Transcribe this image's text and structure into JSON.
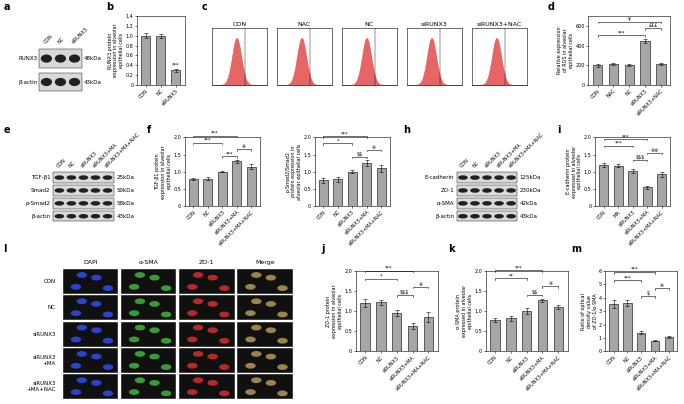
{
  "chart_data": [
    {
      "panel": "b",
      "type": "bar",
      "categories": [
        "CON",
        "NC",
        "siRUNX3"
      ],
      "values": [
        1.0,
        1.0,
        0.3
      ],
      "errors": [
        0.05,
        0.04,
        0.03
      ],
      "ylabel": "RUNX3 protein\nexpression in alveolar\nepithelial cells",
      "ylim": [
        0,
        1.4
      ],
      "yticks": [
        0,
        0.2,
        0.4,
        0.6,
        0.8,
        1.0,
        1.2,
        1.4
      ],
      "color": "#a6a6a6",
      "annotations": [
        {
          "text": "***",
          "bar": "siRUNX3"
        }
      ]
    },
    {
      "panel": "d",
      "type": "bar",
      "categories": [
        "CON",
        "NAC",
        "NC",
        "siRUNX3",
        "siRUNX3+NAC"
      ],
      "values": [
        200,
        210,
        200,
        450,
        210
      ],
      "errors": [
        15,
        12,
        10,
        20,
        12
      ],
      "ylabel": "Relative expression\nof ROS in alveolar\nepithelial cells",
      "ylim": [
        0,
        700
      ],
      "yticks": [
        0,
        200,
        400,
        600
      ],
      "color": "#a6a6a6",
      "annotations": [
        {
          "text": "***",
          "between": [
            "CON",
            "siRUNX3"
          ]
        },
        {
          "text": "£££",
          "between": [
            "siRUNX3",
            "siRUNX3+NAC"
          ]
        },
        {
          "text": "¥",
          "between": [
            "CON",
            "siRUNX3+NAC"
          ]
        }
      ]
    },
    {
      "panel": "f",
      "type": "bar",
      "categories": [
        "CON",
        "NC",
        "siRUNX3",
        "siRUNX3+MA",
        "siRUNX3+MA+NAC"
      ],
      "values": [
        0.78,
        0.8,
        1.0,
        1.3,
        1.15
      ],
      "errors": [
        0.03,
        0.04,
        0.02,
        0.05,
        0.06
      ],
      "ylabel": "TGF-β1 protein\nexpression in alveolar\nepithelial cells",
      "ylim": [
        0,
        2.0
      ],
      "yticks": [
        0,
        0.5,
        1.0,
        1.5,
        2.0
      ],
      "color": "#a6a6a6",
      "annotations": [
        {
          "text": "***",
          "between": [
            "siRUNX3",
            "siRUNX3+MA"
          ]
        },
        {
          "text": "※",
          "between": [
            "siRUNX3+MA",
            "siRUNX3+MA+NAC"
          ]
        },
        {
          "text": "***",
          "between": [
            "CON",
            "siRUNX3"
          ]
        },
        {
          "text": "***",
          "between": [
            "CON",
            "siRUNX3+MA"
          ]
        }
      ]
    },
    {
      "panel": "",
      "type": "bar",
      "categories": [
        "CON",
        "NC",
        "siRUNX3",
        "siRUNX3+MA",
        "siRUNX3+MA+NAC"
      ],
      "values": [
        0.75,
        0.78,
        1.0,
        1.25,
        1.1
      ],
      "errors": [
        0.07,
        0.08,
        0.05,
        0.08,
        0.1
      ],
      "ylabel": "p-Smad2/Smad2\nprotein expression in\nalveolar epithelial cells",
      "ylim": [
        0,
        2.0
      ],
      "yticks": [
        0,
        0.5,
        1.0,
        1.5,
        2.0
      ],
      "color": "#a6a6a6",
      "annotations": [
        {
          "text": "$$",
          "between": [
            "siRUNX3",
            "siRUNX3+MA"
          ]
        },
        {
          "text": "※",
          "between": [
            "siRUNX3+MA",
            "siRUNX3+MA+NAC"
          ]
        },
        {
          "text": "*",
          "between": [
            "CON",
            "siRUNX3"
          ]
        },
        {
          "text": "***",
          "between": [
            "CON",
            "siRUNX3+MA"
          ]
        }
      ]
    },
    {
      "panel": "i",
      "type": "bar",
      "categories": [
        "CON",
        "MA",
        "siRUNX3",
        "siRUNX3+MA",
        "siRUNX3+MA+NAC"
      ],
      "values": [
        1.2,
        1.18,
        1.02,
        0.55,
        0.92
      ],
      "errors": [
        0.05,
        0.05,
        0.06,
        0.04,
        0.08
      ],
      "ylabel": "E-cadherin protein\nexpressed in alveolar\nepithelial cells",
      "ylim": [
        0,
        2.0
      ],
      "yticks": [
        0,
        0.5,
        1.0,
        1.5,
        2.0
      ],
      "color": "#a6a6a6",
      "annotations": [
        {
          "text": "$$$",
          "between": [
            "siRUNX3",
            "siRUNX3+MA"
          ]
        },
        {
          "text": "※※",
          "between": [
            "siRUNX3+MA",
            "siRUNX3+MA+NAC"
          ]
        },
        {
          "text": "***",
          "between": [
            "CON",
            "siRUNX3"
          ]
        },
        {
          "text": "***",
          "between": [
            "CON",
            "siRUNX3+MA"
          ]
        }
      ]
    },
    {
      "panel": "j",
      "type": "bar",
      "categories": [
        "CON",
        "NC",
        "siRUNX3",
        "siRUNX3+MA",
        "siRUNX3+MA+NAC"
      ],
      "values": [
        1.2,
        1.22,
        0.95,
        0.63,
        0.85
      ],
      "errors": [
        0.1,
        0.06,
        0.08,
        0.07,
        0.12
      ],
      "ylabel": "ZO-1 protein\nexpression in alveolar\nepithelial cells",
      "ylim": [
        0,
        2.0
      ],
      "yticks": [
        0,
        0.5,
        1.0,
        1.5,
        2.0
      ],
      "color": "#a6a6a6",
      "annotations": [
        {
          "text": "$$$",
          "between": [
            "siRUNX3",
            "siRUNX3+MA"
          ]
        },
        {
          "text": "※",
          "between": [
            "siRUNX3+MA",
            "siRUNX3+MA+NAC"
          ]
        },
        {
          "text": "*",
          "between": [
            "CON",
            "siRUNX3"
          ]
        },
        {
          "text": "***",
          "between": [
            "CON",
            "siRUNX3+MA"
          ]
        }
      ]
    },
    {
      "panel": "k",
      "type": "bar",
      "categories": [
        "CON",
        "NC",
        "siRUNX3",
        "siRUNX3+MA",
        "siRUNX3+MA+NAC"
      ],
      "values": [
        0.78,
        0.82,
        1.0,
        1.27,
        1.1
      ],
      "errors": [
        0.04,
        0.06,
        0.08,
        0.04,
        0.06
      ],
      "ylabel": "α-SMA protein\nexpressed in alveolar\nepithelial cells",
      "ylim": [
        0,
        2.0
      ],
      "yticks": [
        0,
        0.5,
        1.0,
        1.5,
        2.0
      ],
      "color": "#a6a6a6",
      "annotations": [
        {
          "text": "$$",
          "between": [
            "siRUNX3",
            "siRUNX3+MA"
          ]
        },
        {
          "text": "※",
          "between": [
            "siRUNX3+MA",
            "siRUNX3+MA+NAC"
          ]
        },
        {
          "text": "**",
          "between": [
            "CON",
            "siRUNX3"
          ]
        },
        {
          "text": "***",
          "between": [
            "CON",
            "siRUNX3+MA"
          ]
        }
      ]
    },
    {
      "panel": "m",
      "type": "bar",
      "categories": [
        "CON",
        "NC",
        "siRUNX3",
        "siRUNX3+MA",
        "siRUNX3+MA+NAC"
      ],
      "values": [
        3.5,
        3.6,
        1.4,
        0.8,
        1.1
      ],
      "errors": [
        0.3,
        0.2,
        0.1,
        0.05,
        0.08
      ],
      "ylabel": "Ratio of optical\ndensity value\nof ZO-1/α-SMA",
      "ylim": [
        0,
        6
      ],
      "yticks": [
        0,
        1,
        2,
        3,
        4,
        5,
        6
      ],
      "color": "#a6a6a6",
      "annotations": [
        {
          "text": "$",
          "between": [
            "siRUNX3",
            "siRUNX3+MA"
          ]
        },
        {
          "text": "※",
          "between": [
            "siRUNX3+MA",
            "siRUNX3+MA+NAC"
          ]
        },
        {
          "text": "***",
          "between": [
            "CON",
            "siRUNX3"
          ]
        },
        {
          "text": "***",
          "between": [
            "CON",
            "siRUNX3+MA"
          ]
        }
      ]
    }
  ],
  "blots": [
    {
      "panel": "a",
      "lanes": [
        "CON",
        "NC",
        "siRUNX3"
      ],
      "bands": [
        {
          "name": "RUNX3",
          "size": "48kDa"
        },
        {
          "name": "β-actin",
          "size": "43kDa"
        }
      ]
    },
    {
      "panel": "e",
      "lanes": [
        "CON",
        "NC",
        "siRUNX3",
        "siRUNX3+MA",
        "siRUNX3+MA+NAC"
      ],
      "bands": [
        {
          "name": "TGF-β1",
          "size": "25kDa"
        },
        {
          "name": "Smad2",
          "size": "50kDa"
        },
        {
          "name": "p-Smad2",
          "size": "58kDa"
        },
        {
          "name": "β-actin",
          "size": "43kDa"
        }
      ]
    },
    {
      "panel": "h",
      "lanes": [
        "CON",
        "NC",
        "siRUNX3",
        "siRUNX3+MA",
        "siRUNX3+MA+NAC"
      ],
      "bands": [
        {
          "name": "E-cadherin",
          "size": "125kDa"
        },
        {
          "name": "ZO-1",
          "size": "230kDa"
        },
        {
          "name": "α-SMA",
          "size": "42kDa"
        },
        {
          "name": "β-actin",
          "size": "43kDa"
        }
      ]
    }
  ],
  "flow_cytometry": {
    "panel": "c",
    "samples": [
      "CON",
      "NAC",
      "NC",
      "siRUNX3",
      "siRUNX3+NAC"
    ]
  },
  "immunofluorescence": {
    "panel": "l",
    "channels": [
      "DAPI",
      "α-SMA",
      "ZO-1",
      "Merge"
    ],
    "groups": [
      "CON",
      "NC",
      "siRUNX3",
      "siRUNX3\n+MA",
      "siRUNX3\n+MA+NAC"
    ]
  }
}
